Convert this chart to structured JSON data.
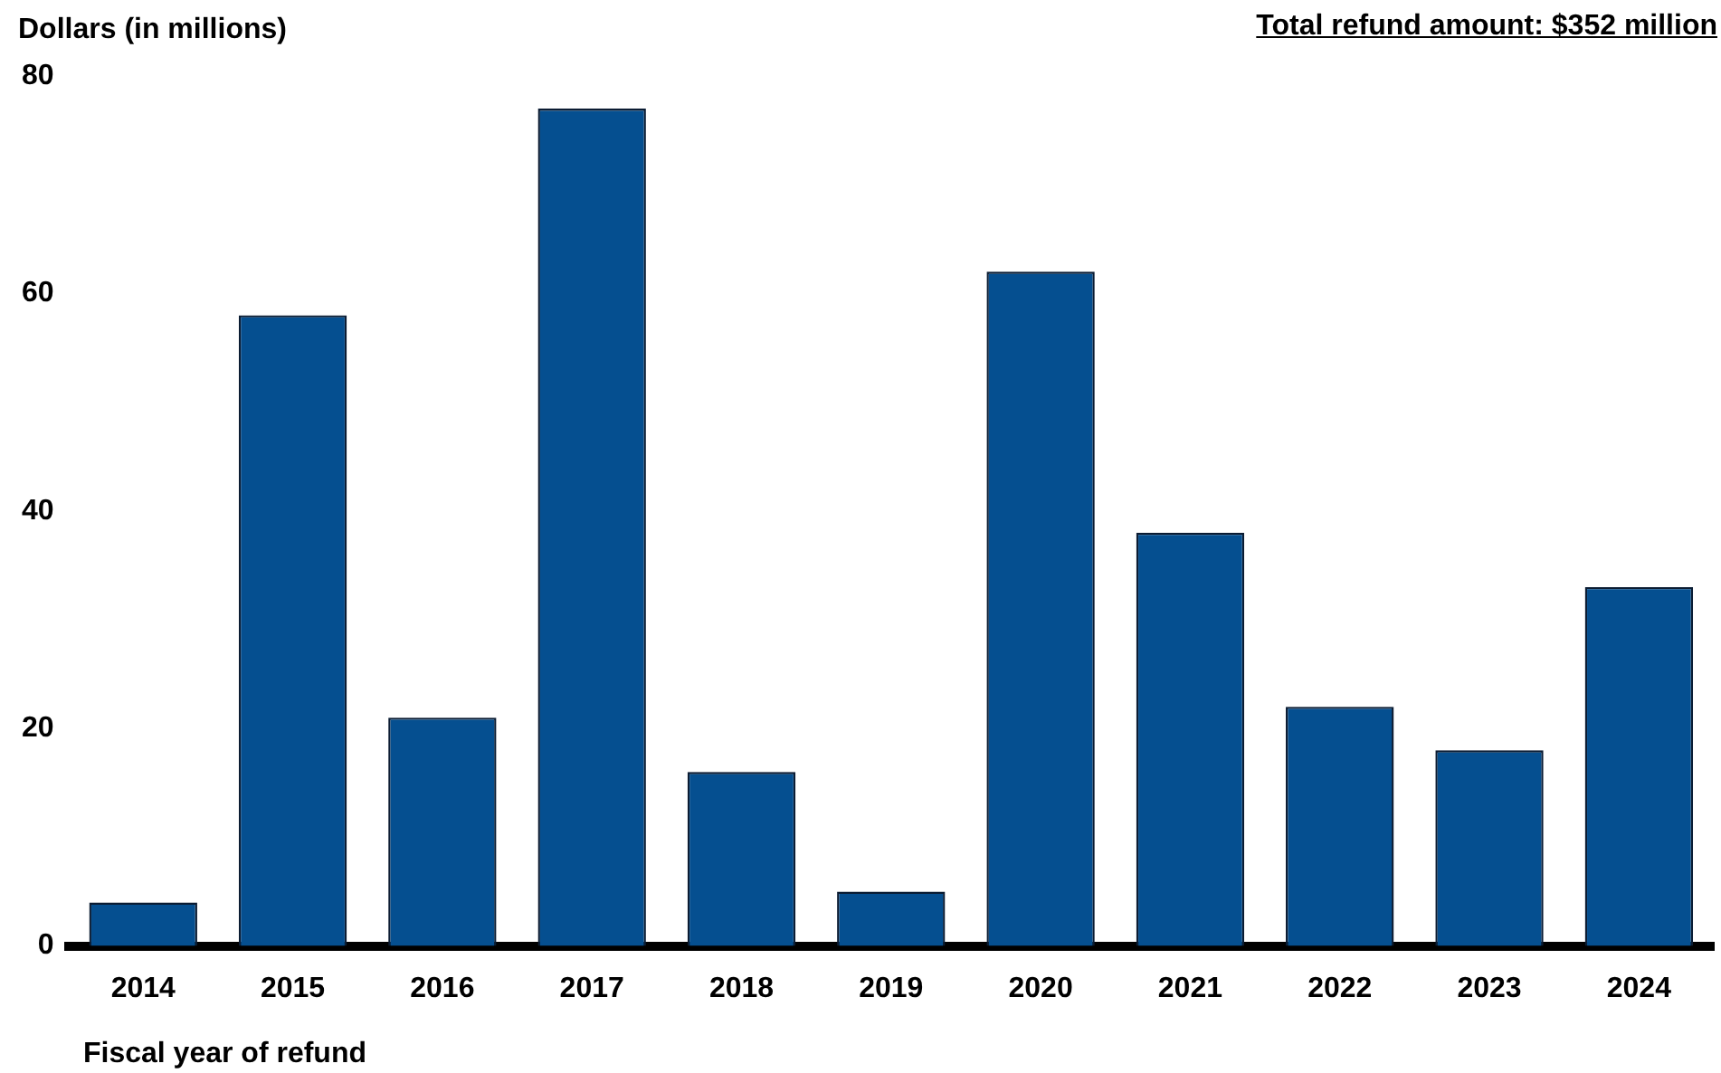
{
  "chart_data": {
    "type": "bar",
    "title": "Total refund amount: $352 million",
    "ylabel": "Dollars (in millions)",
    "xlabel": "Fiscal year of refund",
    "categories": [
      "2014",
      "2015",
      "2016",
      "2017",
      "2018",
      "2019",
      "2020",
      "2021",
      "2022",
      "2023",
      "2024"
    ],
    "values": [
      4,
      58,
      21,
      77,
      16,
      5,
      62,
      38,
      22,
      18,
      33
    ],
    "color": "#054f90",
    "ylim": [
      0,
      80
    ],
    "yticks": [
      0,
      20,
      40,
      60,
      80
    ],
    "grid": false,
    "legend": false
  }
}
